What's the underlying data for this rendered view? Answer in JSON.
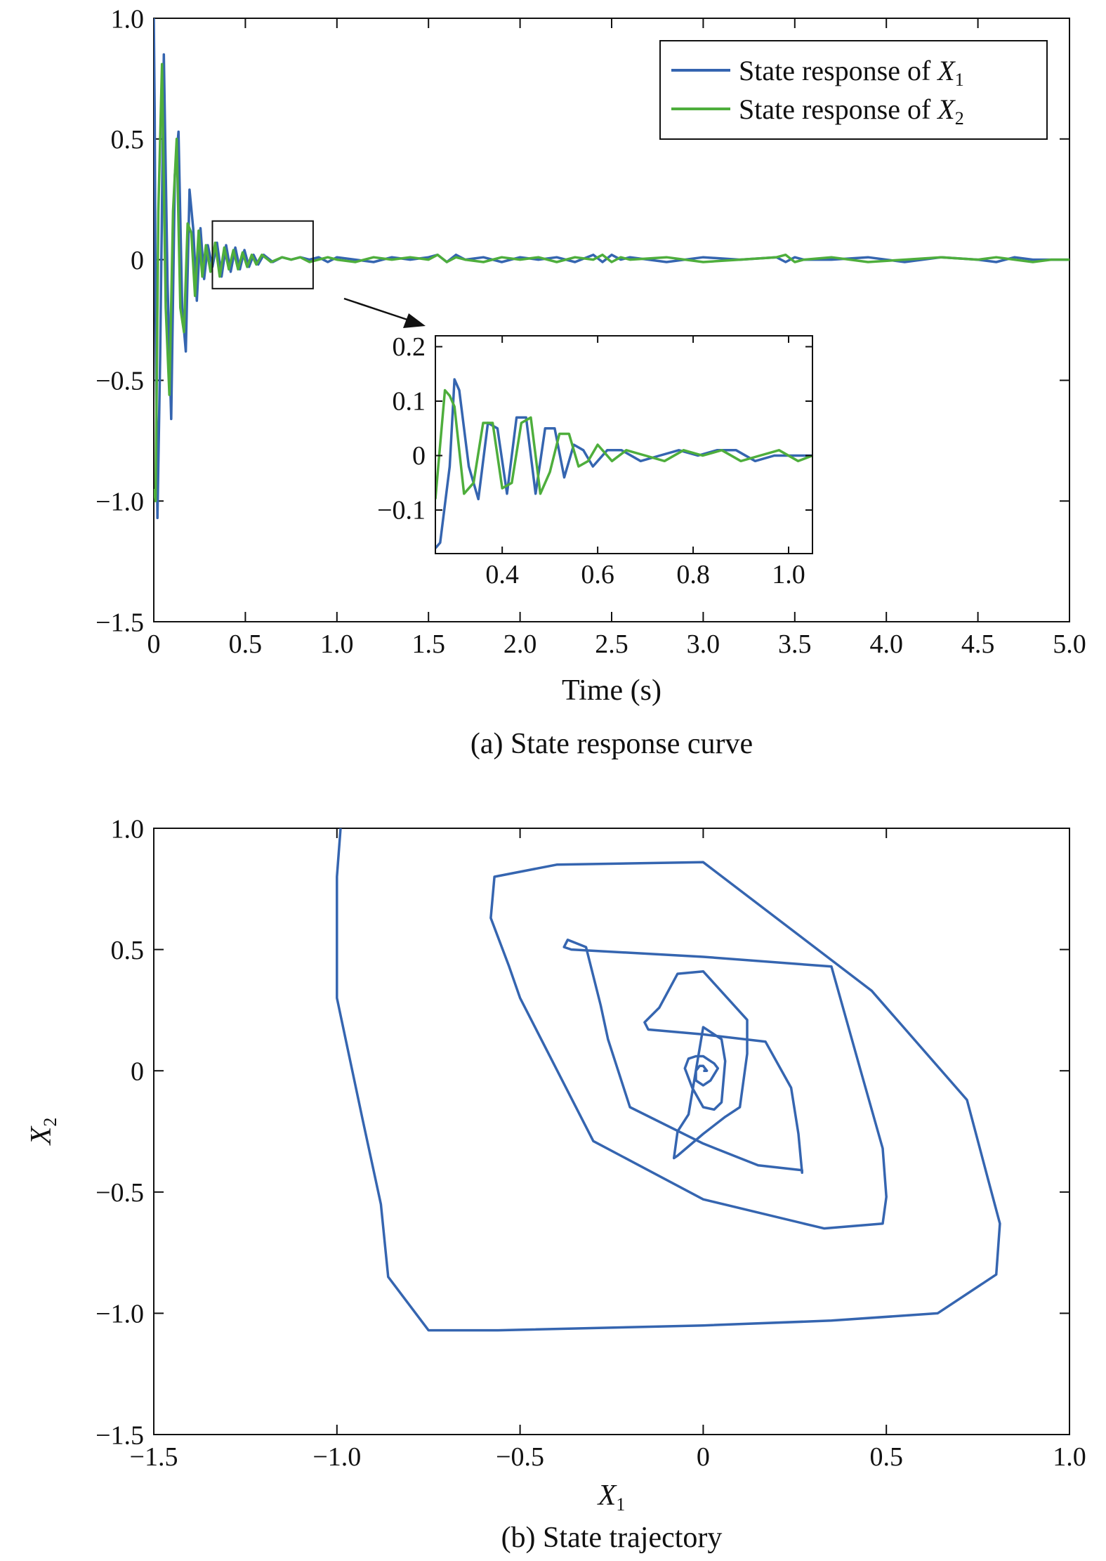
{
  "chart_data": [
    {
      "type": "line",
      "caption": "(a) State response curve",
      "xlabel": "Time (s)",
      "ylabel": "",
      "xlim": [
        0,
        5
      ],
      "ylim": [
        -1.5,
        1
      ],
      "xticks": [
        "0",
        "0.5",
        "1.0",
        "1.5",
        "2.0",
        "2.5",
        "3.0",
        "3.5",
        "4.0",
        "4.5",
        "5.0"
      ],
      "yticks": [
        "−1.5",
        "−1.0",
        "−0.5",
        "0",
        "0.5",
        "1.0"
      ],
      "legend_position": "top-right",
      "legend": [
        {
          "prefix": "State response of ",
          "var": "X",
          "sub": "1"
        },
        {
          "prefix": "State response of ",
          "var": "X",
          "sub": "2"
        }
      ],
      "series": [
        {
          "color": "#3565b0",
          "x": [
            0.0,
            0.005,
            0.01,
            0.02,
            0.035,
            0.055,
            0.075,
            0.095,
            0.115,
            0.135,
            0.155,
            0.175,
            0.195,
            0.215,
            0.235,
            0.255,
            0.275,
            0.295,
            0.32,
            0.345,
            0.37,
            0.395,
            0.42,
            0.445,
            0.47,
            0.495,
            0.52,
            0.545,
            0.57,
            0.6,
            0.65,
            0.7,
            0.75,
            0.8,
            0.85,
            0.9,
            0.95,
            1.0,
            1.1,
            1.2,
            1.3,
            1.4,
            1.5,
            1.55,
            1.6,
            1.65,
            1.7,
            1.8,
            1.9,
            2.0,
            2.1,
            2.2,
            2.3,
            2.4,
            2.45,
            2.5,
            2.55,
            2.6,
            2.8,
            3.0,
            3.2,
            3.4,
            3.45,
            3.5,
            3.55,
            3.7,
            3.9,
            4.1,
            4.3,
            4.5,
            4.6,
            4.7,
            4.8,
            4.9,
            5.0
          ],
          "y": [
            1.0,
            0.6,
            -0.2,
            -1.07,
            -0.4,
            0.85,
            -0.1,
            -0.66,
            0.35,
            0.53,
            -0.2,
            -0.38,
            0.29,
            0.13,
            -0.17,
            0.13,
            -0.08,
            0.06,
            -0.03,
            0.07,
            -0.07,
            0.06,
            -0.05,
            0.05,
            -0.04,
            0.04,
            -0.03,
            0.02,
            -0.02,
            0.02,
            -0.01,
            0.01,
            0.0,
            0.01,
            0.0,
            0.01,
            -0.01,
            0.01,
            0.0,
            -0.01,
            0.01,
            0.0,
            0.01,
            0.02,
            -0.01,
            0.02,
            0.0,
            0.01,
            -0.01,
            0.01,
            0.0,
            0.01,
            -0.01,
            0.02,
            -0.01,
            0.02,
            0.0,
            0.01,
            -0.01,
            0.01,
            0.0,
            0.01,
            -0.01,
            0.01,
            0.0,
            0.0,
            0.01,
            -0.01,
            0.01,
            0.0,
            -0.01,
            0.01,
            0.0,
            0.0,
            0.0
          ]
        },
        {
          "color": "#4eae3c",
          "x": [
            0.0,
            0.01,
            0.025,
            0.045,
            0.065,
            0.085,
            0.105,
            0.125,
            0.145,
            0.165,
            0.185,
            0.205,
            0.225,
            0.245,
            0.265,
            0.285,
            0.31,
            0.335,
            0.36,
            0.385,
            0.41,
            0.435,
            0.46,
            0.485,
            0.51,
            0.535,
            0.56,
            0.59,
            0.64,
            0.7,
            0.75,
            0.8,
            0.85,
            0.9,
            0.95,
            1.0,
            1.1,
            1.2,
            1.3,
            1.4,
            1.5,
            1.55,
            1.6,
            1.65,
            1.7,
            1.8,
            1.9,
            2.0,
            2.1,
            2.2,
            2.3,
            2.4,
            2.45,
            2.5,
            2.55,
            2.6,
            2.8,
            3.0,
            3.2,
            3.4,
            3.45,
            3.5,
            3.55,
            3.7,
            3.9,
            4.1,
            4.3,
            4.5,
            4.6,
            4.7,
            4.8,
            4.9,
            5.0
          ],
          "y": [
            -0.95,
            -1.0,
            0.2,
            0.81,
            -0.2,
            -0.56,
            0.2,
            0.5,
            -0.2,
            -0.3,
            0.15,
            0.11,
            -0.15,
            0.12,
            -0.07,
            0.06,
            -0.05,
            0.07,
            -0.07,
            0.05,
            -0.04,
            0.04,
            -0.04,
            0.03,
            -0.03,
            0.02,
            -0.02,
            0.02,
            -0.01,
            0.01,
            0.0,
            0.01,
            -0.01,
            0.0,
            0.01,
            0.0,
            -0.01,
            0.01,
            0.0,
            0.01,
            0.0,
            0.02,
            -0.01,
            0.01,
            0.0,
            -0.01,
            0.01,
            0.0,
            0.01,
            -0.01,
            0.01,
            0.0,
            0.02,
            -0.01,
            0.01,
            0.0,
            0.01,
            -0.01,
            0.0,
            0.01,
            0.02,
            -0.01,
            0.0,
            0.01,
            -0.01,
            0.0,
            0.01,
            0.0,
            0.01,
            0.0,
            -0.01,
            0.0,
            0.0
          ]
        }
      ],
      "inset": {
        "xlim": [
          0.26,
          1.05
        ],
        "ylim": [
          -0.18,
          0.22
        ],
        "xticks": [
          "0.4",
          "0.6",
          "0.8",
          "1.0"
        ],
        "yticks": [
          "−0.1",
          "0",
          "0.1",
          "0.2"
        ],
        "zoom_box": {
          "xlim": [
            0.32,
            0.87
          ],
          "ylim": [
            -0.12,
            0.16
          ]
        },
        "series": [
          {
            "color": "#3565b0",
            "x": [
              0.26,
              0.27,
              0.29,
              0.3,
              0.31,
              0.33,
              0.35,
              0.37,
              0.39,
              0.41,
              0.43,
              0.45,
              0.47,
              0.49,
              0.51,
              0.53,
              0.55,
              0.57,
              0.59,
              0.62,
              0.65,
              0.69,
              0.73,
              0.77,
              0.81,
              0.85,
              0.89,
              0.93,
              0.97,
              1.0,
              1.05
            ],
            "y": [
              -0.17,
              -0.16,
              -0.02,
              0.14,
              0.12,
              -0.02,
              -0.08,
              0.06,
              0.05,
              -0.07,
              0.07,
              0.07,
              -0.07,
              0.05,
              0.05,
              -0.04,
              0.02,
              0.01,
              -0.02,
              0.01,
              0.01,
              -0.01,
              0.0,
              0.01,
              0.0,
              0.01,
              0.01,
              -0.01,
              0.0,
              0.0,
              0.0
            ]
          },
          {
            "color": "#4eae3c",
            "x": [
              0.26,
              0.28,
              0.29,
              0.3,
              0.32,
              0.34,
              0.36,
              0.38,
              0.4,
              0.42,
              0.44,
              0.46,
              0.48,
              0.5,
              0.52,
              0.54,
              0.56,
              0.58,
              0.6,
              0.63,
              0.66,
              0.7,
              0.74,
              0.78,
              0.82,
              0.86,
              0.9,
              0.94,
              0.98,
              1.02,
              1.05
            ],
            "y": [
              -0.08,
              0.12,
              0.11,
              0.09,
              -0.07,
              -0.05,
              0.06,
              0.06,
              -0.06,
              -0.05,
              0.06,
              0.07,
              -0.07,
              -0.03,
              0.04,
              0.04,
              -0.02,
              -0.01,
              0.02,
              -0.01,
              0.01,
              0.0,
              -0.01,
              0.01,
              0.0,
              0.01,
              -0.01,
              0.0,
              0.01,
              -0.01,
              0.0
            ]
          }
        ]
      }
    },
    {
      "type": "line",
      "caption": "(b) State trajectory",
      "xlabel": {
        "var": "X",
        "sub": "1"
      },
      "ylabel": {
        "var": "X",
        "sub": "2"
      },
      "xlim": [
        -1.5,
        1
      ],
      "ylim": [
        -1.5,
        1
      ],
      "xticks": [
        "−1.5",
        "−1.0",
        "−0.5",
        "0",
        "0.5",
        "1.0"
      ],
      "yticks": [
        "−1.5",
        "−1.0",
        "−0.5",
        "0",
        "0.5",
        "1.0"
      ],
      "series": [
        {
          "color": "#3565b0",
          "x": [
            -0.99,
            -1.0,
            -1.0,
            -0.93,
            -0.88,
            -0.86,
            -0.75,
            -0.56,
            0.0,
            0.35,
            0.64,
            0.8,
            0.81,
            0.78,
            0.72,
            0.46,
            0.0,
            -0.4,
            -0.57,
            -0.58,
            -0.53,
            -0.5,
            -0.3,
            0.0,
            0.33,
            0.49,
            0.5,
            0.49,
            0.43,
            0.35,
            0.0,
            -0.36,
            -0.38,
            -0.37,
            -0.32,
            -0.28,
            -0.26,
            -0.2,
            0.0,
            0.15,
            0.27,
            0.27,
            0.26,
            0.24,
            0.17,
            0.0,
            -0.15,
            -0.16,
            -0.12,
            -0.07,
            0.0,
            0.12,
            0.12,
            0.1,
            0.06,
            0.0,
            -0.07,
            -0.08,
            -0.07,
            -0.04,
            0.0,
            0.05,
            0.06,
            0.05,
            0.03,
            0.0,
            -0.03,
            -0.05,
            -0.04,
            -0.02,
            0.0,
            0.03,
            0.04,
            0.02,
            0.0,
            -0.02,
            -0.02,
            -0.01,
            0.0,
            0.01,
            0.0
          ],
          "y": [
            1.0,
            0.8,
            0.3,
            -0.2,
            -0.55,
            -0.85,
            -1.07,
            -1.07,
            -1.05,
            -1.03,
            -1.0,
            -0.84,
            -0.63,
            -0.46,
            -0.12,
            0.33,
            0.86,
            0.85,
            0.8,
            0.63,
            0.43,
            0.3,
            -0.29,
            -0.53,
            -0.65,
            -0.63,
            -0.52,
            -0.32,
            0.0,
            0.43,
            0.47,
            0.5,
            0.51,
            0.54,
            0.51,
            0.27,
            0.13,
            -0.15,
            -0.3,
            -0.39,
            -0.41,
            -0.42,
            -0.26,
            -0.07,
            0.12,
            0.15,
            0.17,
            0.2,
            0.26,
            0.4,
            0.41,
            0.21,
            0.07,
            -0.15,
            -0.19,
            -0.26,
            -0.35,
            -0.36,
            -0.25,
            -0.18,
            0.18,
            0.13,
            0.04,
            -0.13,
            -0.16,
            -0.15,
            -0.07,
            0.01,
            0.05,
            0.06,
            0.06,
            0.03,
            0.01,
            -0.04,
            -0.06,
            -0.04,
            0.0,
            0.02,
            0.02,
            0.0,
            0.0
          ]
        }
      ]
    }
  ]
}
